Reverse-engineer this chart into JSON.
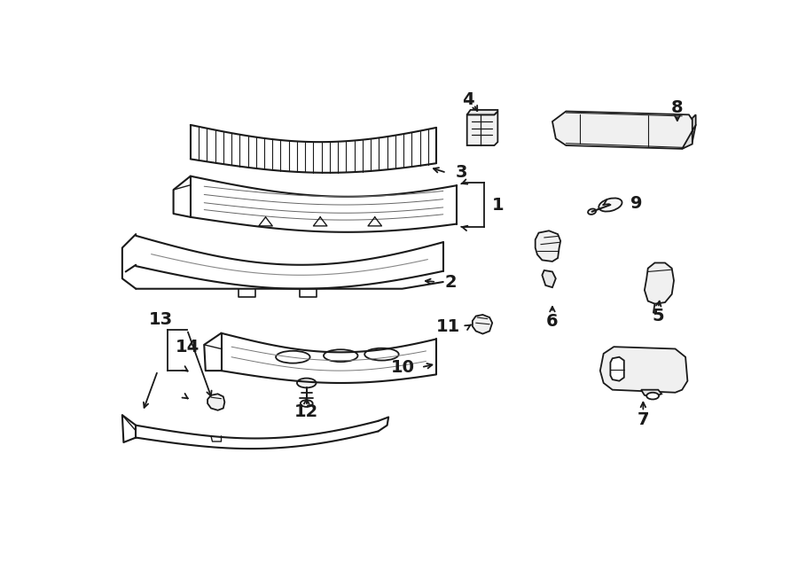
{
  "bg_color": "#ffffff",
  "line_color": "#1a1a1a",
  "figure_width": 9.0,
  "figure_height": 6.61,
  "dpi": 100,
  "font_size": 14,
  "font_weight": "bold"
}
